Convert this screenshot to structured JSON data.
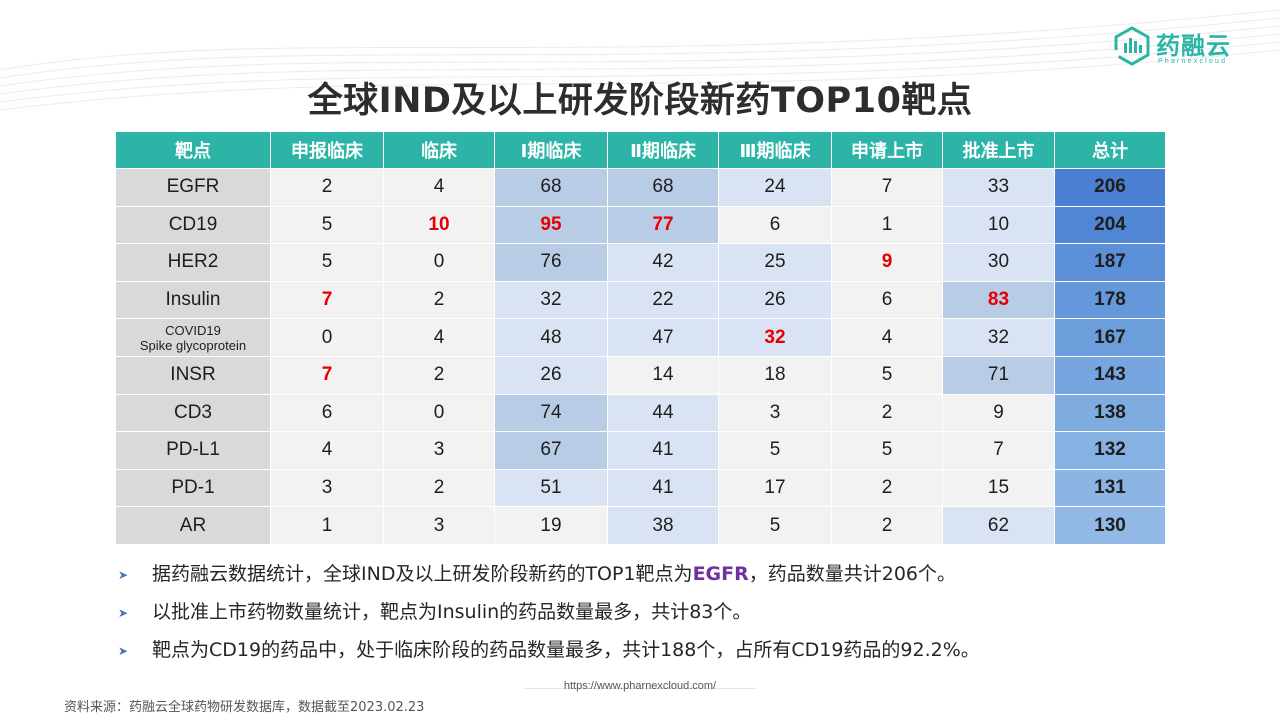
{
  "logo": {
    "name": "药融云",
    "subtitle": "Pharnexcloud"
  },
  "title": "全球IND及以上研发阶段新药TOP10靶点",
  "table": {
    "headers": [
      "靶点",
      "申报临床",
      "临床",
      "Ⅰ期临床",
      "Ⅱ期临床",
      "Ⅲ期临床",
      "申请上市",
      "批准上市",
      "总计"
    ],
    "rows": [
      {
        "target": "EGFR",
        "cells": [
          "2",
          "4",
          "68",
          "68",
          "24",
          "7",
          "33"
        ],
        "total": "206"
      },
      {
        "target": "CD19",
        "cells": [
          "5",
          "10",
          "95",
          "77",
          "6",
          "1",
          "10"
        ],
        "total": "204"
      },
      {
        "target": "HER2",
        "cells": [
          "5",
          "0",
          "76",
          "42",
          "25",
          "9",
          "30"
        ],
        "total": "187"
      },
      {
        "target": "Insulin",
        "cells": [
          "7",
          "2",
          "32",
          "22",
          "26",
          "6",
          "83"
        ],
        "total": "178"
      },
      {
        "target_line1": "COVID19",
        "target_line2": "Spike glycoprotein",
        "cells": [
          "0",
          "4",
          "48",
          "47",
          "32",
          "4",
          "32"
        ],
        "total": "167"
      },
      {
        "target": "INSR",
        "cells": [
          "7",
          "2",
          "26",
          "14",
          "18",
          "5",
          "71"
        ],
        "total": "143"
      },
      {
        "target": "CD3",
        "cells": [
          "6",
          "0",
          "74",
          "44",
          "3",
          "2",
          "9"
        ],
        "total": "138"
      },
      {
        "target": "PD-L1",
        "cells": [
          "4",
          "3",
          "67",
          "41",
          "5",
          "5",
          "7"
        ],
        "total": "132"
      },
      {
        "target": "PD-1",
        "cells": [
          "3",
          "2",
          "51",
          "41",
          "17",
          "2",
          "15"
        ],
        "total": "131"
      },
      {
        "target": "AR",
        "cells": [
          "1",
          "3",
          "19",
          "38",
          "5",
          "2",
          "62"
        ],
        "total": "130"
      }
    ],
    "colors": {
      "header": "#2cb5a7",
      "target_bg": "#d9d9d9",
      "light": "#f2f2f2",
      "medium": "#dae3f3",
      "strong": "#b8cce6",
      "highlight_text": "#e60000",
      "totals": [
        "#4a7fd1",
        "#5086d4",
        "#5b8fd7",
        "#6598da",
        "#6c9edc",
        "#76a5df",
        "#7eace1",
        "#86b1e3",
        "#8cb5e4",
        "#92b9e6"
      ]
    }
  },
  "bullets": [
    {
      "before": "据药融云数据统计，全球IND及以上研发阶段新药的TOP1靶点为",
      "highlight": "EGFR",
      "after": "，药品数量共计206个。"
    },
    {
      "before": "以批准上市药物数量统计，靶点为Insulin的药品数量最多，共计83个。",
      "highlight": "",
      "after": ""
    },
    {
      "before": "靶点为CD19的药品中，处于临床阶段的药品数量最多，共计188个，占所有CD19药品的92.2%。",
      "highlight": "",
      "after": ""
    }
  ],
  "footer": {
    "url": "https://www.pharnexcloud.com/",
    "source": "资料来源：药融云全球药物研发数据库，数据截至2023.02.23"
  }
}
